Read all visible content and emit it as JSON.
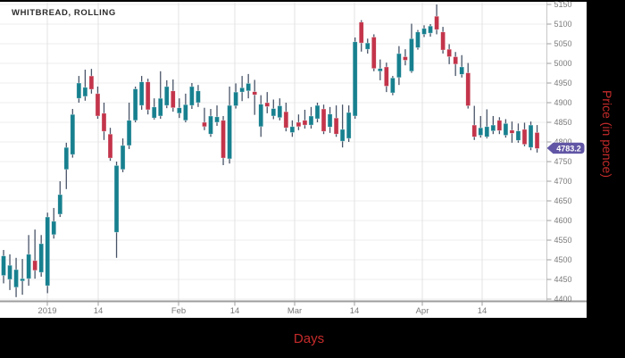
{
  "title": "WHITBREAD, ROLLING",
  "axis": {
    "x_label": "Days",
    "y_label": "Price (in pence)"
  },
  "last_price": {
    "label": "4783.2"
  },
  "colors": {
    "up": "#17808f",
    "down": "#c3344a",
    "wick": "#485468",
    "badge": "#6156a5",
    "badge_text": "#ffffff",
    "grid_h": "#ededed",
    "grid_v": "#e3e3e3",
    "axis_line": "#9c9c9c",
    "y_axis_line": "#c8c8c8",
    "tick_text": "#7b7b7b",
    "title_text": "#2b2b2b",
    "axis_title_text": "#c62b2b",
    "frame": "#000000",
    "plot_bg": "#ffffff"
  },
  "chart_data": {
    "type": "candlestick",
    "title": "WHITBREAD, ROLLING",
    "xlabel": "Days",
    "ylabel": "Price (in pence)",
    "ylim": [
      4400,
      5150
    ],
    "y_tick_step": 50,
    "y_ticks": [
      5150,
      5100,
      5050,
      5000,
      4950,
      4900,
      4850,
      4800,
      4750,
      4700,
      4650,
      4600,
      4550,
      4500,
      4450,
      4400
    ],
    "x_ticks": [
      {
        "label": "2019",
        "x": 53
      },
      {
        "label": "14",
        "x": 110
      },
      {
        "label": "Feb",
        "x": 200
      },
      {
        "label": "14",
        "x": 263
      },
      {
        "label": "Mar",
        "x": 330
      },
      {
        "label": "14",
        "x": 397
      },
      {
        "label": "Apr",
        "x": 473
      },
      {
        "label": "14",
        "x": 540
      }
    ],
    "grid": true,
    "legend": "none",
    "last_price": 4783.2,
    "candles_ohlc": [
      [
        4460,
        4525,
        4440,
        4510
      ],
      [
        4450,
        4514,
        4423,
        4486
      ],
      [
        4430,
        4505,
        4405,
        4475
      ],
      [
        4446,
        4502,
        4411,
        4452
      ],
      [
        4452,
        4563,
        4434,
        4514
      ],
      [
        4498,
        4577,
        4452,
        4473
      ],
      [
        4468,
        4563,
        4457,
        4541
      ],
      [
        4434,
        4620,
        4415,
        4609
      ],
      [
        4564,
        4632,
        4554,
        4598
      ],
      [
        4616,
        4700,
        4609,
        4666
      ],
      [
        4730,
        4798,
        4680,
        4786
      ],
      [
        4768,
        4884,
        4760,
        4870
      ],
      [
        4911,
        4968,
        4900,
        4950
      ],
      [
        4916,
        4984,
        4905,
        4939
      ],
      [
        4968,
        4986,
        4923,
        4934
      ],
      [
        4923,
        4941,
        4859,
        4866
      ],
      [
        4873,
        4900,
        4805,
        4827
      ],
      [
        4820,
        4836,
        4752,
        4759
      ],
      [
        4570,
        4750,
        4505,
        4740
      ],
      [
        4730,
        4809,
        4723,
        4791
      ],
      [
        4791,
        4900,
        4782,
        4855
      ],
      [
        4855,
        4941,
        4850,
        4935
      ],
      [
        4893,
        4968,
        4882,
        4953
      ],
      [
        4953,
        4961,
        4870,
        4882
      ],
      [
        4861,
        4911,
        4857,
        4889
      ],
      [
        4866,
        4980,
        4859,
        4911
      ],
      [
        4893,
        4957,
        4886,
        4941
      ],
      [
        4930,
        4959,
        4877,
        4887
      ],
      [
        4873,
        4911,
        4861,
        4887
      ],
      [
        4855,
        4923,
        4850,
        4895
      ],
      [
        4893,
        4950,
        4884,
        4941
      ],
      [
        4900,
        4945,
        4889,
        4930
      ],
      [
        4850,
        4887,
        4830,
        4839
      ],
      [
        4820,
        4884,
        4813,
        4866
      ],
      [
        4850,
        4893,
        4841,
        4864
      ],
      [
        4855,
        4866,
        4741,
        4759
      ],
      [
        4757,
        4941,
        4745,
        4893
      ],
      [
        4892,
        4949,
        4885,
        4927
      ],
      [
        4927,
        4968,
        4904,
        4938
      ],
      [
        4930,
        4973,
        4911,
        4949
      ],
      [
        4928,
        4958,
        4869,
        4920
      ],
      [
        4839,
        4919,
        4813,
        4896
      ],
      [
        4900,
        4927,
        4873,
        4890
      ],
      [
        4866,
        4908,
        4858,
        4885
      ],
      [
        4862,
        4911,
        4855,
        4892
      ],
      [
        4877,
        4900,
        4827,
        4836
      ],
      [
        4824,
        4855,
        4813,
        4839
      ],
      [
        4850,
        4870,
        4830,
        4839
      ],
      [
        4855,
        4882,
        4834,
        4843
      ],
      [
        4843,
        4889,
        4834,
        4866
      ],
      [
        4859,
        4900,
        4850,
        4893
      ],
      [
        4884,
        4895,
        4820,
        4827
      ],
      [
        4838,
        4889,
        4823,
        4871
      ],
      [
        4861,
        4893,
        4813,
        4820
      ],
      [
        4802,
        4895,
        4786,
        4832
      ],
      [
        4809,
        4893,
        4800,
        4875
      ],
      [
        4866,
        5066,
        4859,
        5055
      ],
      [
        5105,
        5110,
        5030,
        5052
      ],
      [
        5036,
        5063,
        5025,
        5052
      ],
      [
        5067,
        5074,
        4980,
        4987
      ],
      [
        4980,
        5010,
        4957,
        4987
      ],
      [
        4991,
        5002,
        4927,
        4942
      ],
      [
        4925,
        4968,
        4919,
        4963
      ],
      [
        4964,
        5044,
        4945,
        5025
      ],
      [
        5017,
        5036,
        4995,
        5008
      ],
      [
        4980,
        5101,
        4976,
        5063
      ],
      [
        5040,
        5085,
        5035,
        5080
      ],
      [
        5074,
        5097,
        5067,
        5089
      ],
      [
        5077,
        5100,
        5068,
        5095
      ],
      [
        5120,
        5150,
        5074,
        5086
      ],
      [
        5080,
        5093,
        5025,
        5034
      ],
      [
        5036,
        5049,
        4998,
        5017
      ],
      [
        5017,
        5029,
        4968,
        4998
      ],
      [
        4972,
        5021,
        4964,
        4991
      ],
      [
        4976,
        5001,
        4885,
        4892
      ],
      [
        4843,
        4892,
        4805,
        4813
      ],
      [
        4817,
        4866,
        4811,
        4836
      ],
      [
        4813,
        4883,
        4809,
        4839
      ],
      [
        4828,
        4866,
        4820,
        4843
      ],
      [
        4855,
        4863,
        4820,
        4829
      ],
      [
        4817,
        4858,
        4811,
        4847
      ],
      [
        4830,
        4852,
        4798,
        4822
      ],
      [
        4804,
        4847,
        4798,
        4828
      ],
      [
        4832,
        4849,
        4789,
        4794
      ],
      [
        4786,
        4852,
        4779,
        4843
      ],
      [
        4824,
        4843,
        4773,
        4783.2
      ]
    ]
  }
}
